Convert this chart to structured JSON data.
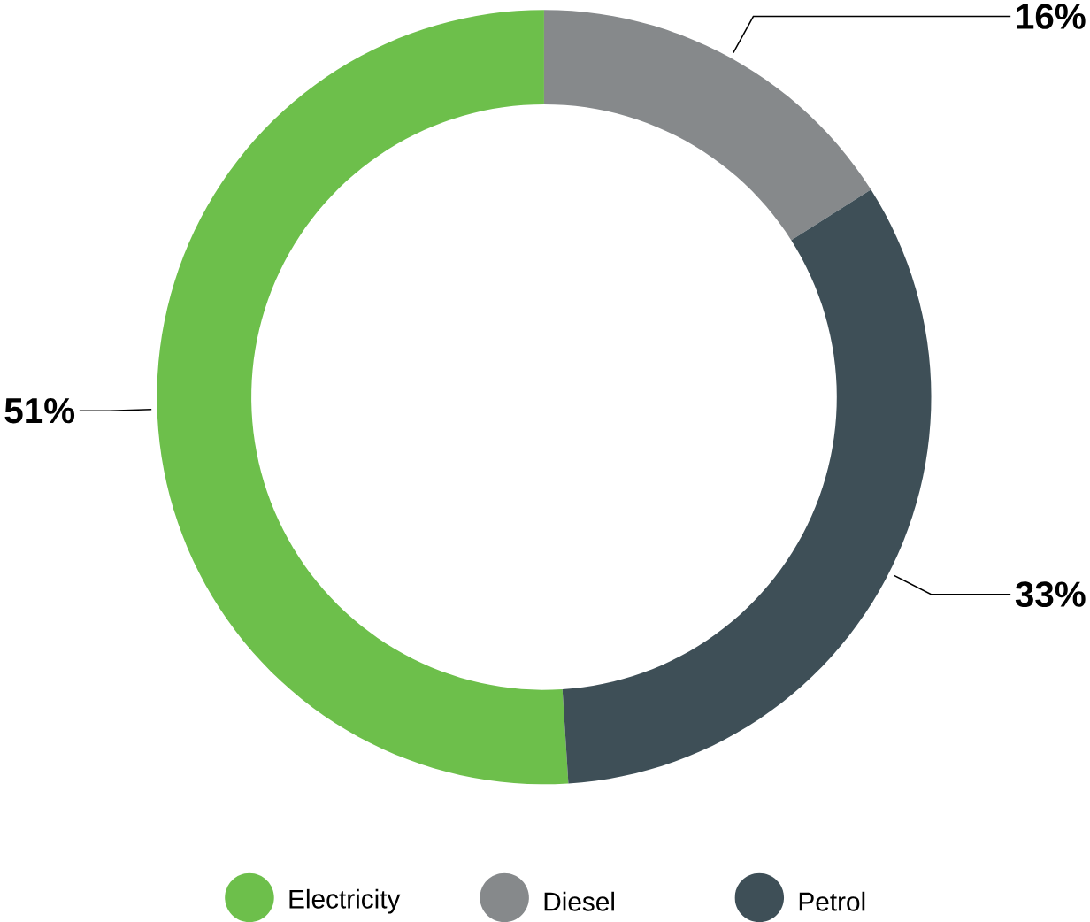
{
  "chart_data": {
    "type": "donut",
    "categories": [
      "Electricity",
      "Diesel",
      "Petrol"
    ],
    "values": [
      51,
      16,
      33
    ],
    "colors": [
      "#6dbf4b",
      "#86898b",
      "#3e4f57"
    ],
    "value_labels": [
      "51%",
      "16%",
      "33%"
    ],
    "legend": "bottom"
  }
}
